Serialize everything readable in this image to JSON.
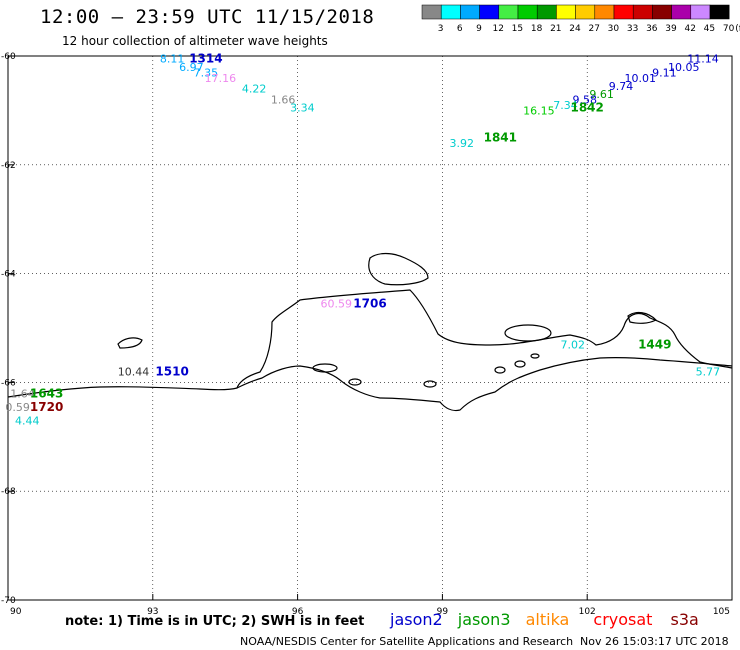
{
  "header": {
    "title": "12:00 – 23:59 UTC 11/15/2018",
    "subtitle": "12 hour collection of altimeter wave heights"
  },
  "color_scale": {
    "bins": [
      {
        "label": "3",
        "color": "#888888"
      },
      {
        "label": "6",
        "color": "#00ffff"
      },
      {
        "label": "9",
        "color": "#00aaff"
      },
      {
        "label": "12",
        "color": "#0000ff"
      },
      {
        "label": "15",
        "color": "#44ee44"
      },
      {
        "label": "18",
        "color": "#00cc00"
      },
      {
        "label": "21",
        "color": "#009900"
      },
      {
        "label": "24",
        "color": "#ffff00"
      },
      {
        "label": "27",
        "color": "#ffcc00"
      },
      {
        "label": "30",
        "color": "#ff8800"
      },
      {
        "label": "33",
        "color": "#ff0000"
      },
      {
        "label": "36",
        "color": "#cc0000"
      },
      {
        "label": "39",
        "color": "#880000"
      },
      {
        "label": "42",
        "color": "#aa00aa"
      },
      {
        "label": "45",
        "color": "#cc88ff"
      },
      {
        "label": "70",
        "color": "#000000"
      }
    ],
    "unit": "(ft)"
  },
  "axes": {
    "x_ticks": [
      "90",
      "93",
      "96",
      "99",
      "102",
      "105"
    ],
    "y_ticks": [
      "-60",
      "-62",
      "-64",
      "-66",
      "-68",
      "-70"
    ]
  },
  "wave_labels": [
    {
      "text": "8.11",
      "color": "#00aaff",
      "lon": 93.4,
      "lat": -60.05
    },
    {
      "text": "6.97",
      "color": "#00aaff",
      "lon": 93.8,
      "lat": -60.2
    },
    {
      "text": "7.35",
      "color": "#00aaff",
      "lon": 94.1,
      "lat": -60.3
    },
    {
      "text": "17.16",
      "color": "#ee88ee",
      "lon": 94.4,
      "lat": -60.4
    },
    {
      "text": "4.22",
      "color": "#00cccc",
      "lon": 95.1,
      "lat": -60.6
    },
    {
      "text": "1.66",
      "color": "#888888",
      "lon": 95.7,
      "lat": -60.8
    },
    {
      "text": "3.34",
      "color": "#00cccc",
      "lon": 96.1,
      "lat": -60.95
    },
    {
      "text": "11.14",
      "color": "#0000cc",
      "lon": 104.4,
      "lat": -60.05
    },
    {
      "text": "10.05",
      "color": "#0000cc",
      "lon": 104.0,
      "lat": -60.2
    },
    {
      "text": "9.11",
      "color": "#0000cc",
      "lon": 103.6,
      "lat": -60.3
    },
    {
      "text": "10.01",
      "color": "#0000cc",
      "lon": 103.1,
      "lat": -60.4
    },
    {
      "text": "9.74",
      "color": "#0000cc",
      "lon": 102.7,
      "lat": -60.55
    },
    {
      "text": "9.61",
      "color": "#009900",
      "lon": 102.3,
      "lat": -60.7
    },
    {
      "text": "9.58",
      "color": "#0000cc",
      "lon": 101.95,
      "lat": -60.8
    },
    {
      "text": "7.34",
      "color": "#00cccc",
      "lon": 101.55,
      "lat": -60.9
    },
    {
      "text": "16.15",
      "color": "#00cc00",
      "lon": 101.0,
      "lat": -61.0
    },
    {
      "text": "3.92",
      "color": "#00cccc",
      "lon": 99.4,
      "lat": -61.6
    },
    {
      "text": "60.59",
      "color": "#ee88ee",
      "lon": 96.8,
      "lat": -64.55
    },
    {
      "text": "7.02",
      "color": "#00cccc",
      "lon": 101.7,
      "lat": -65.3
    },
    {
      "text": "5.77",
      "color": "#00cccc",
      "lon": 104.5,
      "lat": -65.8
    },
    {
      "text": "10.44",
      "color": "#333333",
      "lon": 92.6,
      "lat": -65.8
    },
    {
      "text": "1.64",
      "color": "#888888",
      "lon": 90.3,
      "lat": -66.2
    },
    {
      "text": "0.59",
      "color": "#888888",
      "lon": 90.2,
      "lat": -66.45
    },
    {
      "text": "4.44",
      "color": "#00cccc",
      "lon": 90.4,
      "lat": -66.7
    }
  ],
  "time_labels": [
    {
      "text": "1314",
      "color": "#0000cc",
      "lon": 94.1,
      "lat": -60.05
    },
    {
      "text": "1842",
      "color": "#009900",
      "lon": 102.0,
      "lat": -60.95
    },
    {
      "text": "1841",
      "color": "#009900",
      "lon": 100.2,
      "lat": -61.5
    },
    {
      "text": "1706",
      "color": "#0000cc",
      "lon": 97.5,
      "lat": -64.55
    },
    {
      "text": "1449",
      "color": "#009900",
      "lon": 103.4,
      "lat": -65.3
    },
    {
      "text": "1510",
      "color": "#0000cc",
      "lon": 93.4,
      "lat": -65.8
    },
    {
      "text": "1643",
      "color": "#009900",
      "lon": 90.8,
      "lat": -66.2
    },
    {
      "text": "1720",
      "color": "#880000",
      "lon": 90.8,
      "lat": -66.45
    }
  ],
  "footer": {
    "note": "note: 1) Time is in UTC; 2) SWH is in feet",
    "credit": "NOAA/NESDIS Center for Satellite Applications and Research",
    "timestamp": "Nov 26 15:03:17 UTC 2018",
    "legend": [
      {
        "text": "jason2",
        "color": "#0000cc"
      },
      {
        "text": "jason3",
        "color": "#009900"
      },
      {
        "text": "altika",
        "color": "#ff8800"
      },
      {
        "text": "cryosat",
        "color": "#ff0000"
      },
      {
        "text": "s3a",
        "color": "#880000"
      }
    ]
  }
}
